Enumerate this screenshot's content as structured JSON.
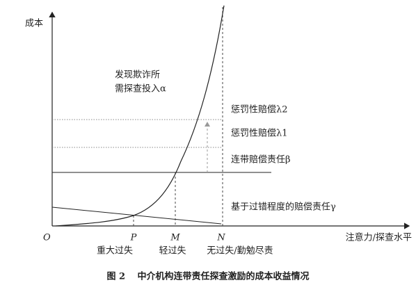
{
  "axes": {
    "y_label": "成本",
    "x_label": "注意力/探查水平",
    "origin": "O"
  },
  "annotations": {
    "fraud_line1": "发现欺诈所",
    "fraud_line2": "需探查投入α",
    "punitive2": "惩罚性赔偿λ2",
    "punitive1": "惩罚性赔偿λ1",
    "joint": "连带赔偿责任β",
    "fault": "基于过错程度的赔偿责任γ"
  },
  "points": [
    {
      "letter": "P",
      "label": "重大过失"
    },
    {
      "letter": "M",
      "label": "轻过失"
    },
    {
      "letter": "N",
      "label": "无过失/勤勉尽责"
    }
  ],
  "caption": "图 2　 中介机构连带责任探查激励的成本收益情况"
}
